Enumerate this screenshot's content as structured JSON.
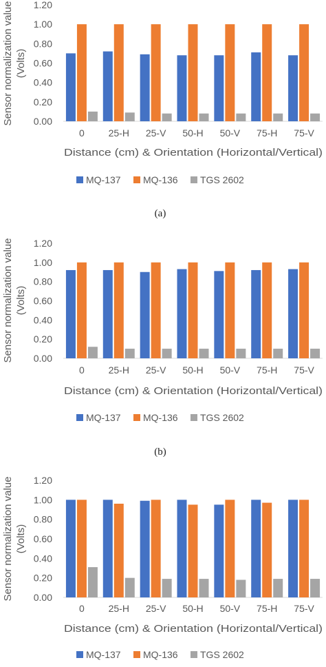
{
  "colors": {
    "MQ-137": "#4472c4",
    "MQ-136": "#ed7d31",
    "TGS 2602": "#a5a5a5",
    "text": "#595959",
    "axis": "#d9d9d9",
    "caption": "#222222"
  },
  "chart_data": [
    {
      "type": "bar",
      "caption": "(a)",
      "categories": [
        "0",
        "25-H",
        "25-V",
        "50-H",
        "50-V",
        "75-H",
        "75-V"
      ],
      "series": [
        {
          "name": "MQ-137",
          "values": [
            0.7,
            0.72,
            0.69,
            0.68,
            0.68,
            0.71,
            0.68
          ]
        },
        {
          "name": "MQ-136",
          "values": [
            1.0,
            1.0,
            1.0,
            1.0,
            1.0,
            1.0,
            1.0
          ]
        },
        {
          "name": "TGS 2602",
          "values": [
            0.1,
            0.09,
            0.08,
            0.08,
            0.08,
            0.08,
            0.08
          ]
        }
      ],
      "yticks": [
        "0.00",
        "0.20",
        "0.40",
        "0.60",
        "0.80",
        "1.00",
        "1.20"
      ],
      "ylim": [
        0,
        1.2
      ],
      "xlabel": "Distance (cm) & Orientation (Horizontal/Vertical)",
      "ylabel_line1": "Sensor normalization value",
      "ylabel_line2": "(Volts)",
      "legend_position": "bottom",
      "grid": false
    },
    {
      "type": "bar",
      "caption": "(b)",
      "categories": [
        "0",
        "25-H",
        "25-V",
        "50-H",
        "50-V",
        "75-H",
        "75-V"
      ],
      "series": [
        {
          "name": "MQ-137",
          "values": [
            0.92,
            0.92,
            0.9,
            0.93,
            0.91,
            0.92,
            0.93
          ]
        },
        {
          "name": "MQ-136",
          "values": [
            1.0,
            1.0,
            1.0,
            1.0,
            1.0,
            1.0,
            1.0
          ]
        },
        {
          "name": "TGS 2602",
          "values": [
            0.12,
            0.1,
            0.1,
            0.1,
            0.1,
            0.1,
            0.1
          ]
        }
      ],
      "yticks": [
        "0.00",
        "0.20",
        "0.40",
        "0.60",
        "0.80",
        "1.00",
        "1.20"
      ],
      "ylim": [
        0,
        1.2
      ],
      "xlabel": "Distance (cm) & Orientation (Horizontal/Vertical)",
      "ylabel_line1": "Sensor normalization value",
      "ylabel_line2": "(Volts)",
      "legend_position": "bottom",
      "grid": false
    },
    {
      "type": "bar",
      "caption": "",
      "categories": [
        "0",
        "25-H",
        "25-V",
        "50-H",
        "50-V",
        "75-H",
        "75-V"
      ],
      "series": [
        {
          "name": "MQ-137",
          "values": [
            1.0,
            1.0,
            0.99,
            1.0,
            0.95,
            1.0,
            1.0
          ]
        },
        {
          "name": "MQ-136",
          "values": [
            1.0,
            0.96,
            1.0,
            0.95,
            1.0,
            0.97,
            1.0
          ]
        },
        {
          "name": "TGS 2602",
          "values": [
            0.31,
            0.2,
            0.19,
            0.19,
            0.18,
            0.19,
            0.19
          ]
        }
      ],
      "yticks": [
        "0.00",
        "0.20",
        "0.40",
        "0.60",
        "0.80",
        "1.00",
        "1.20"
      ],
      "ylim": [
        0,
        1.2
      ],
      "xlabel": "Distance (cm) & Orientation (Horizontal/Vertical)",
      "ylabel_line1": "Sensor normalization value",
      "ylabel_line2": "(Volts)",
      "legend_position": "bottom",
      "grid": false
    }
  ]
}
